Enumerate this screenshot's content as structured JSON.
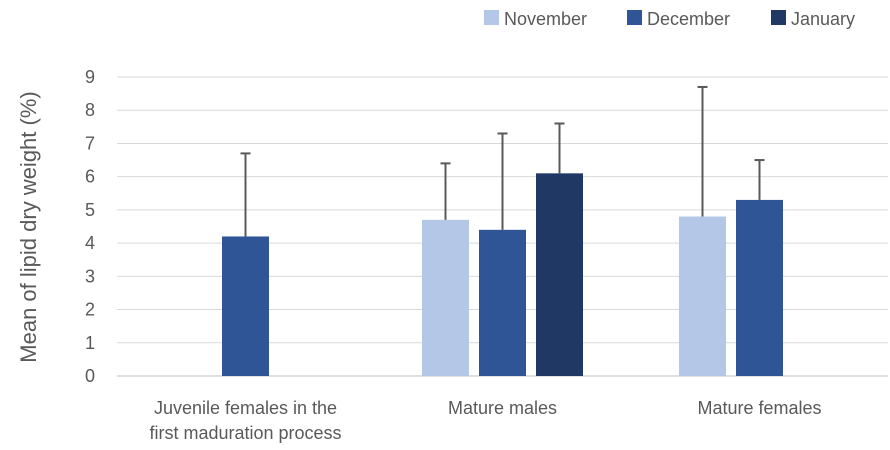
{
  "chart_data": {
    "type": "bar",
    "title": "",
    "xlabel": "",
    "ylabel": "Mean of lipid dry weight (%)",
    "ylim": [
      0,
      9
    ],
    "yticks": [
      0,
      1,
      2,
      3,
      4,
      5,
      6,
      7,
      8,
      9
    ],
    "grid": true,
    "legend_position": "top-right",
    "categories": [
      [
        "Juvenile females in the",
        "first maduration process"
      ],
      [
        "Mature males"
      ],
      [
        "Mature females"
      ]
    ],
    "series": [
      {
        "name": "November",
        "color": "#b4c7e7",
        "values": [
          null,
          4.7,
          4.8
        ],
        "error_upper": [
          null,
          6.4,
          8.7
        ]
      },
      {
        "name": "December",
        "color": "#2f5597",
        "values": [
          4.2,
          4.4,
          5.3
        ],
        "error_upper": [
          6.7,
          7.3,
          6.5
        ]
      },
      {
        "name": "January",
        "color": "#203864",
        "values": [
          null,
          6.1,
          null
        ],
        "error_upper": [
          null,
          7.6,
          null
        ]
      }
    ]
  }
}
